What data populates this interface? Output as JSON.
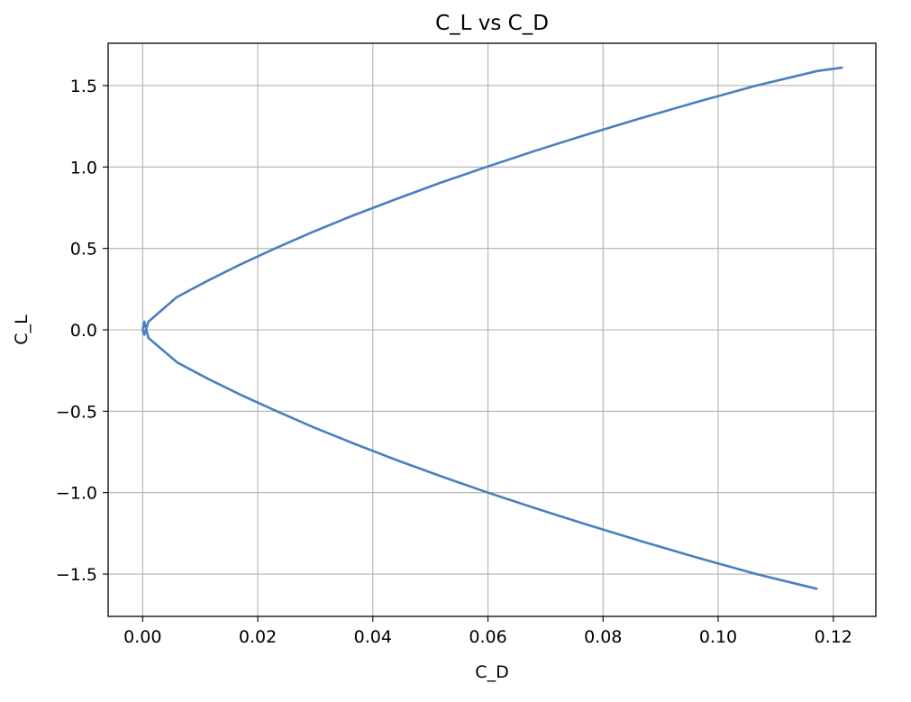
{
  "chart_data": {
    "type": "line",
    "title": "C_L vs C_D",
    "xlabel": "C_D",
    "ylabel": "C_L",
    "xlim": [
      -0.006,
      0.1274
    ],
    "ylim": [
      -1.76,
      1.76
    ],
    "xticks": [
      0.0,
      0.02,
      0.04,
      0.06,
      0.08,
      0.1,
      0.12
    ],
    "xtick_labels": [
      "0.00",
      "0.02",
      "0.04",
      "0.06",
      "0.08",
      "0.10",
      "0.12"
    ],
    "yticks": [
      -1.5,
      -1.0,
      -0.5,
      0.0,
      0.5,
      1.0,
      1.5
    ],
    "ytick_labels": [
      "−1.5",
      "−1.0",
      "−0.5",
      "0.0",
      "0.5",
      "1.0",
      "1.5"
    ],
    "grid": true,
    "series": [
      {
        "color": "#4a7fbf",
        "x": [
          0.1171,
          0.1066,
          0.0965,
          0.0868,
          0.0775,
          0.0686,
          0.06,
          0.0519,
          0.0441,
          0.0368,
          0.0298,
          0.0233,
          0.0171,
          0.0113,
          0.006,
          0.001,
          0.0003,
          0.0,
          0.0003,
          0.001,
          0.0059,
          0.0112,
          0.0169,
          0.023,
          0.0295,
          0.0364,
          0.0438,
          0.0515,
          0.0597,
          0.0683,
          0.0772,
          0.0866,
          0.0964,
          0.1066,
          0.1173,
          0.1215
        ],
        "y": [
          -1.59,
          -1.5,
          -1.4,
          -1.3,
          -1.2,
          -1.1,
          -1.0,
          -0.9,
          -0.8,
          -0.7,
          -0.6,
          -0.5,
          -0.4,
          -0.3,
          -0.2,
          -0.05,
          0.05,
          0.0,
          -0.03,
          0.05,
          0.2,
          0.3,
          0.4,
          0.5,
          0.6,
          0.7,
          0.8,
          0.9,
          1.0,
          1.1,
          1.2,
          1.3,
          1.4,
          1.5,
          1.59,
          1.61
        ]
      }
    ]
  }
}
